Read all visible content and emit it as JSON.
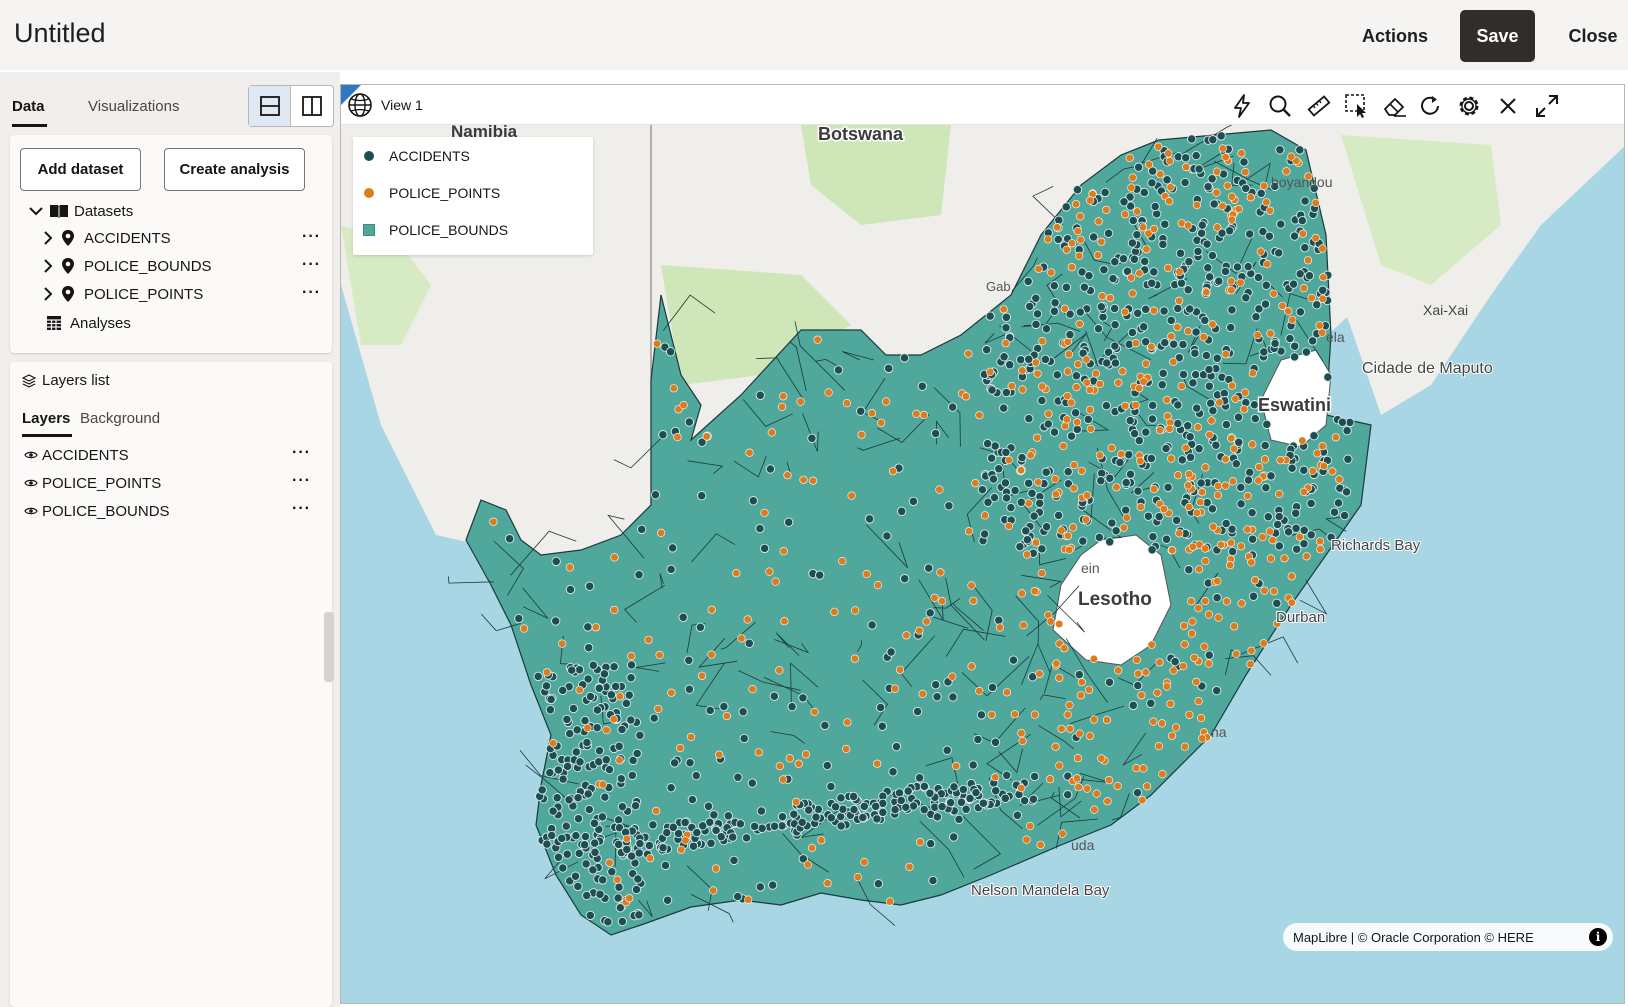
{
  "header": {
    "title": "Untitled",
    "actions_label": "Actions",
    "save_label": "Save",
    "close_label": "Close"
  },
  "left_panel": {
    "tabs": [
      "Data",
      "Visualizations"
    ],
    "add_dataset_label": "Add dataset",
    "create_analysis_label": "Create analysis",
    "tree": {
      "datasets_label": "Datasets",
      "items": [
        "ACCIDENTS",
        "POLICE_BOUNDS",
        "POLICE_POINTS"
      ],
      "analyses_label": "Analyses"
    },
    "layers": {
      "title": "Layers list",
      "tabs": [
        "Layers",
        "Background"
      ],
      "items": [
        "ACCIDENTS",
        "POLICE_POINTS",
        "POLICE_BOUNDS"
      ]
    }
  },
  "map": {
    "view_title": "View 1",
    "legend": [
      {
        "label": "ACCIDENTS",
        "color": "#1f4e52",
        "shape": "circle"
      },
      {
        "label": "POLICE_POINTS",
        "color": "#de7b1d",
        "shape": "circle"
      },
      {
        "label": "POLICE_BOUNDS",
        "color": "#4fa89b",
        "shape": "square"
      }
    ],
    "place_labels": {
      "namibia": "Namibia",
      "botswana": "Botswana",
      "lesotho": "Lesotho",
      "eswatini": "Eswatini",
      "xai_xai": "Xai-Xai",
      "maputo": "Cidade de Maputo",
      "richards_bay": "Richards Bay",
      "durban": "Durban",
      "nelson_mandela_bay": "Nelson Mandela Bay",
      "hoyandou": "hoyandou",
      "gab": "Gab",
      "ela": "ela",
      "ein": "ein",
      "na": "na",
      "uda": "uda"
    },
    "attribution": "MapLibre | © Oracle Corporation  © HERE",
    "tool_icons": [
      "lightning-icon",
      "magnifier-icon",
      "ruler-icon",
      "select-area-icon",
      "eraser-icon",
      "refresh-icon",
      "gear-icon",
      "close-icon",
      "expand-icon"
    ],
    "colors": {
      "water": "#a9d6e4",
      "land": "#efeeea",
      "park": "#cfe6b8",
      "boundary_fill": "#4fa89b",
      "accident": "#1f4e52",
      "police_point": "#de7b1d"
    }
  }
}
